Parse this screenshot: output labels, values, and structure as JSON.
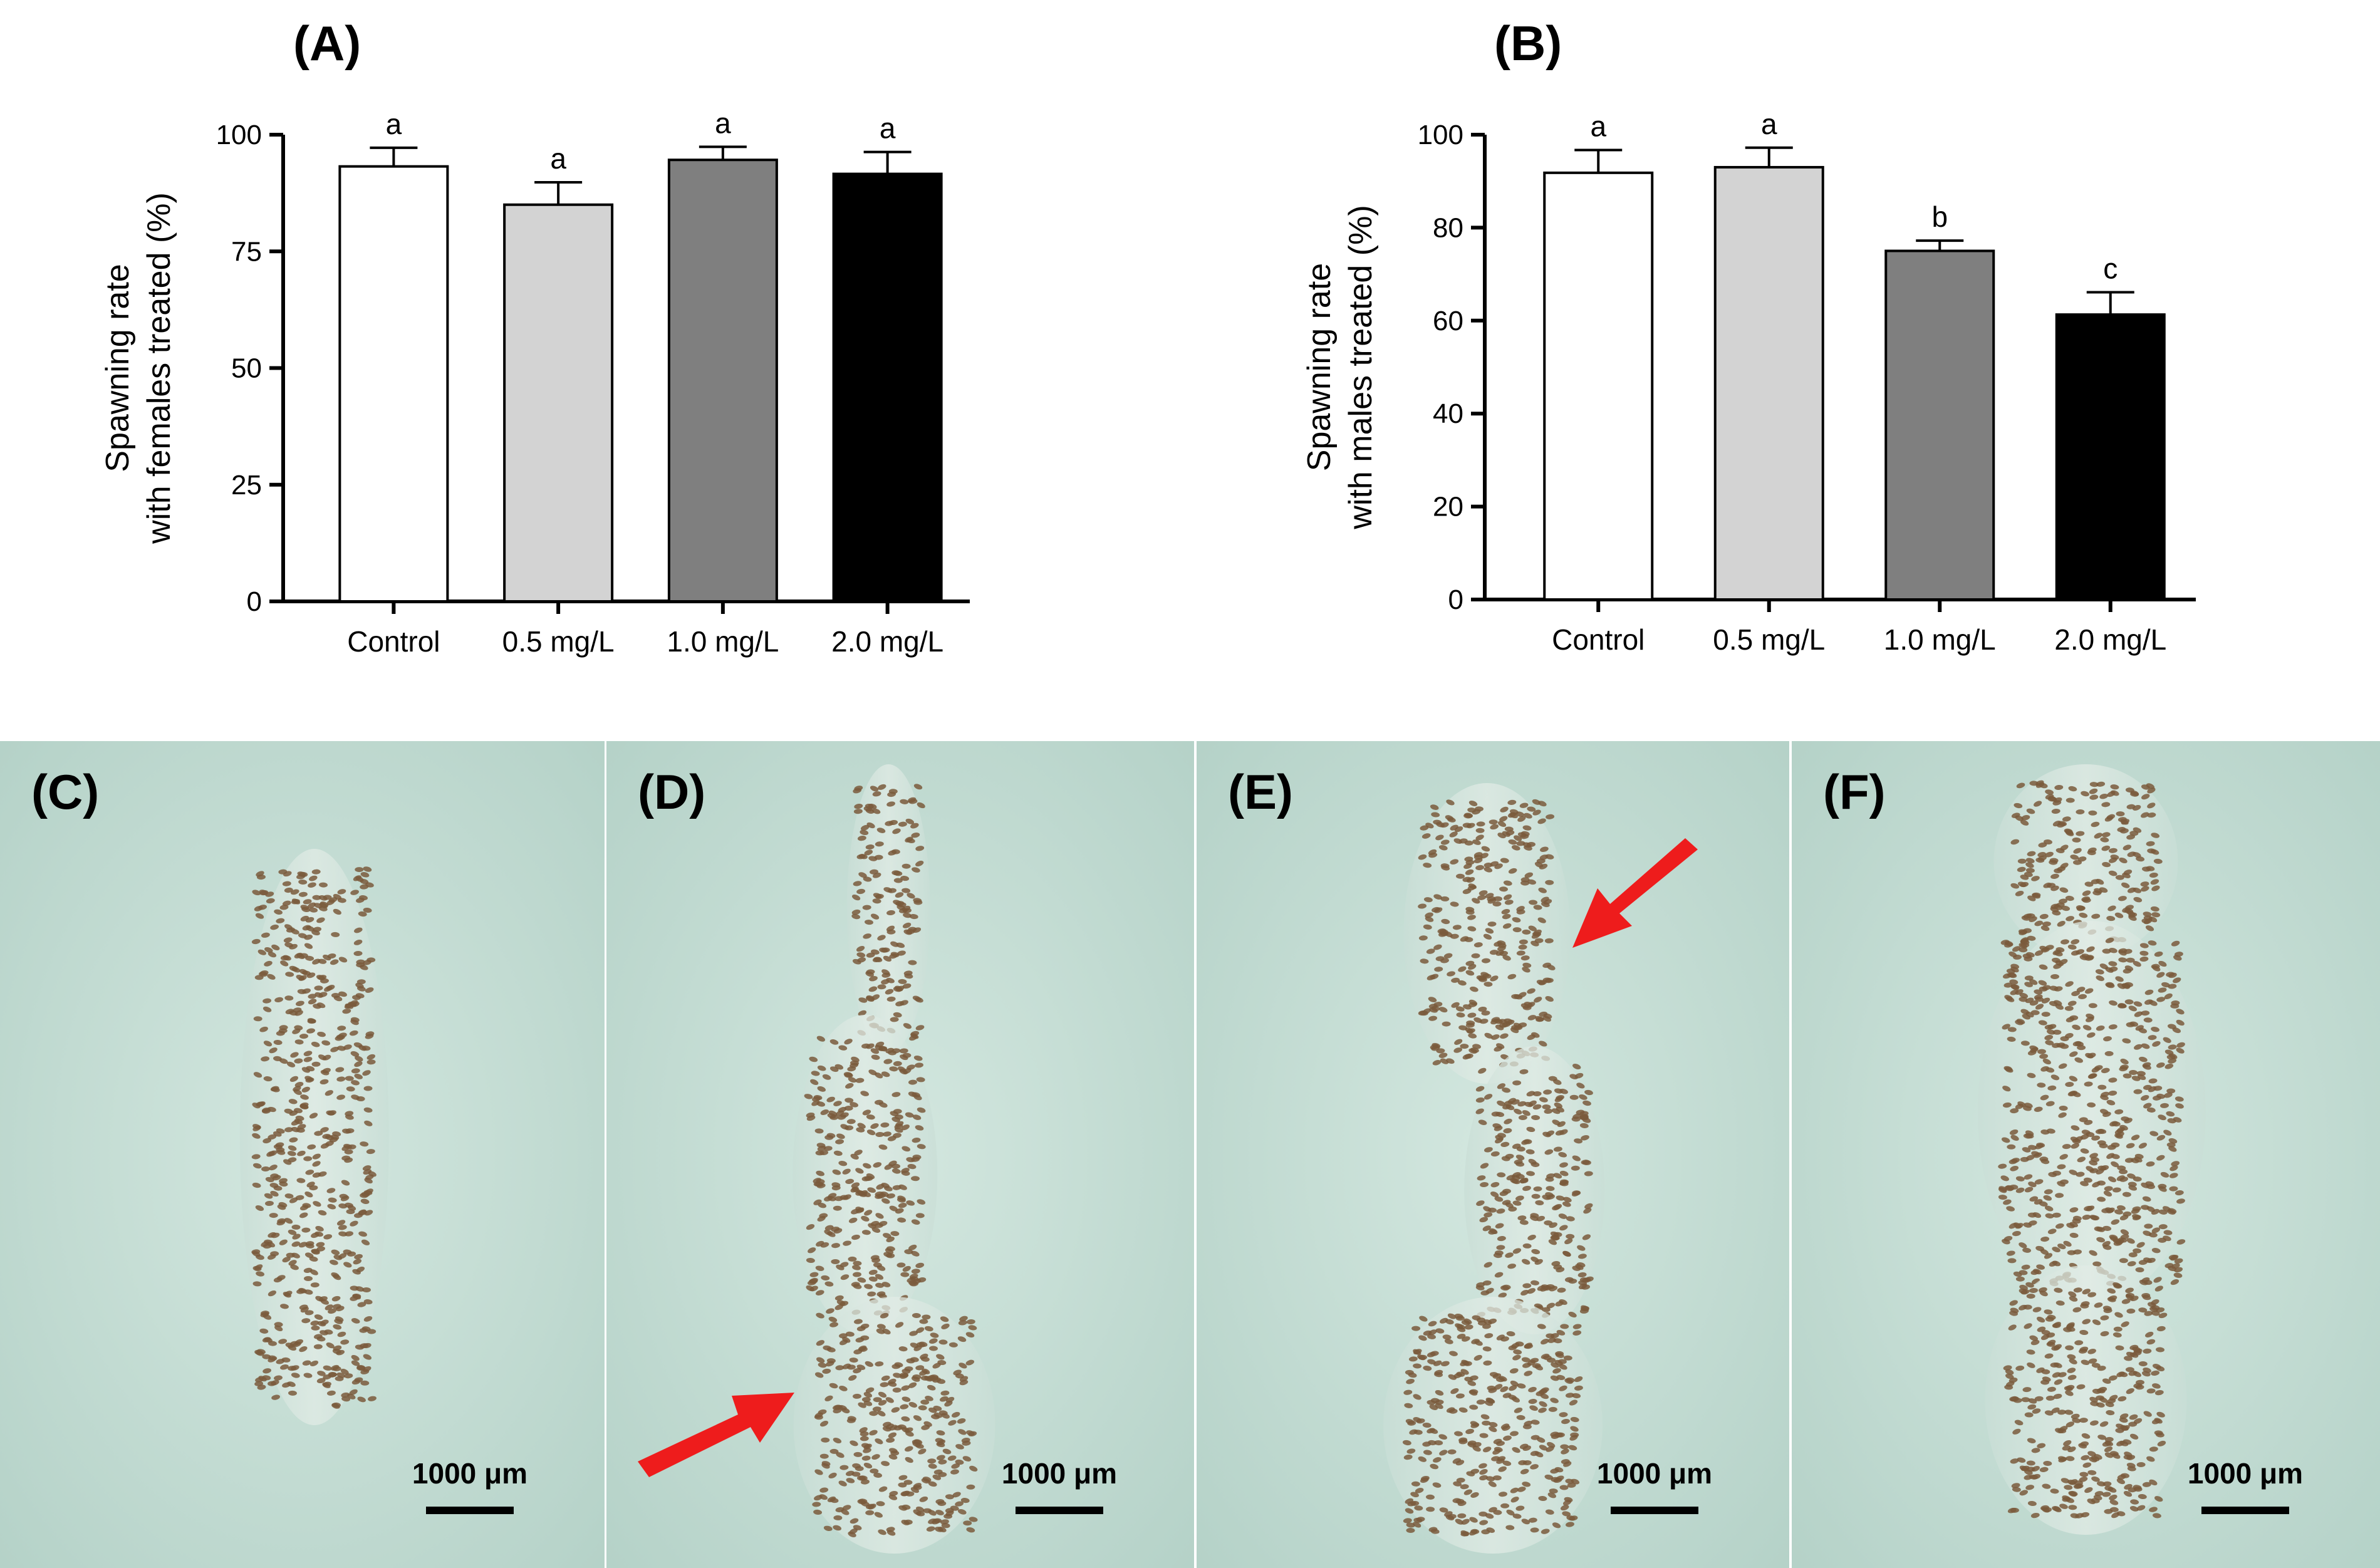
{
  "panels": {
    "A": "(A)",
    "B": "(B)",
    "C": "(C)",
    "D": "(D)",
    "E": "(E)",
    "F": "(F)"
  },
  "chart_data": [
    {
      "type": "bar",
      "panel": "(A)",
      "categories": [
        "Control",
        "0.5 mg/L",
        "1.0 mg/L",
        "2.0 mg/L"
      ],
      "values": [
        93.2,
        85.0,
        94.6,
        91.6
      ],
      "errors": [
        4.0,
        4.8,
        2.8,
        4.7
      ],
      "significance": [
        "a",
        "a",
        "a",
        "a"
      ],
      "bar_colors": [
        "#ffffff",
        "#d3d3d3",
        "#7f7f7f",
        "#000000"
      ],
      "ylabel_line1": "Spawning rate",
      "ylabel_line2": "with females treated (%)",
      "xlabel": "",
      "ylim": [
        0,
        100
      ],
      "yticks": [
        0,
        25,
        50,
        75,
        100
      ]
    },
    {
      "type": "bar",
      "panel": "(B)",
      "categories": [
        "Control",
        "0.5 mg/L",
        "1.0 mg/L",
        "2.0 mg/L"
      ],
      "values": [
        91.8,
        93.0,
        75.0,
        61.3
      ],
      "errors": [
        4.9,
        4.2,
        2.2,
        4.8
      ],
      "significance": [
        "a",
        "a",
        "b",
        "c"
      ],
      "bar_colors": [
        "#ffffff",
        "#d3d3d3",
        "#7f7f7f",
        "#000000"
      ],
      "ylabel_line1": "Spawning rate",
      "ylabel_line2": "with males treated (%)",
      "xlabel": "",
      "ylim": [
        0,
        100
      ],
      "yticks": [
        0,
        20,
        40,
        60,
        80,
        100
      ]
    }
  ],
  "photos": [
    {
      "letter": "(C)",
      "scale_bar": "1000 μm",
      "arrow": "none"
    },
    {
      "letter": "(D)",
      "scale_bar": "1000 μm",
      "arrow": "lower-left"
    },
    {
      "letter": "(E)",
      "scale_bar": "1000 μm",
      "arrow": "upper-right"
    },
    {
      "letter": "(F)",
      "scale_bar": "1000 μm",
      "arrow": "none"
    }
  ],
  "colors": {
    "photo_background": "#c3dcd4",
    "egg_color": "#7a5a3c",
    "arrow_color": "#ee1c1c"
  }
}
